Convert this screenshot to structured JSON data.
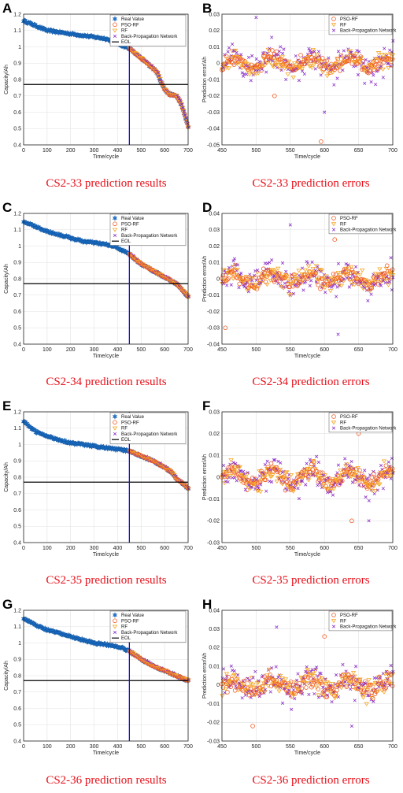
{
  "colors": {
    "real": "#1f77d0",
    "pso_rf": "#f05a22",
    "rf": "#f5a623",
    "bp": "#8b2fc9",
    "eol": "#000000",
    "start_line": "#1010cc",
    "caption": "#e8101a"
  },
  "legend_results": [
    "Real Value",
    "PSO-RF",
    "RF",
    "Back-Propagation  Network",
    "EOL"
  ],
  "legend_errors": [
    "PSO-RF",
    "RF",
    "Back-Propagation  Network"
  ],
  "chart_data": [
    {
      "panel": "A",
      "type": "scatter",
      "caption": "CS2-33 prediction results",
      "xlabel": "Time/cycle",
      "ylabel": "Capacity/Ah",
      "xlim": [
        0,
        700
      ],
      "ylim": [
        0.4,
        1.2
      ],
      "xticks": [
        0,
        100,
        200,
        300,
        400,
        500,
        600,
        700
      ],
      "yticks": [
        0.4,
        0.5,
        0.6,
        0.7,
        0.8,
        0.9,
        1,
        1.1,
        1.2
      ],
      "eol": 0.77,
      "prediction_start": 450,
      "real_curve": [
        [
          0,
          1.16
        ],
        [
          50,
          1.13
        ],
        [
          100,
          1.1
        ],
        [
          150,
          1.09
        ],
        [
          200,
          1.08
        ],
        [
          250,
          1.07
        ],
        [
          300,
          1.06
        ],
        [
          350,
          1.05
        ],
        [
          400,
          1.02
        ],
        [
          450,
          0.99
        ],
        [
          500,
          0.93
        ],
        [
          550,
          0.87
        ],
        [
          570,
          0.84
        ],
        [
          580,
          0.8
        ],
        [
          600,
          0.74
        ],
        [
          620,
          0.71
        ],
        [
          650,
          0.7
        ],
        [
          670,
          0.65
        ],
        [
          690,
          0.56
        ],
        [
          700,
          0.51
        ]
      ]
    },
    {
      "panel": "B",
      "type": "scatter",
      "caption": "CS2-33 prediction errors",
      "xlabel": "Time/cycle",
      "ylabel": "Prediction error/Ah",
      "xlim": [
        450,
        700
      ],
      "ylim": [
        -0.05,
        0.03
      ],
      "xticks": [
        450,
        500,
        550,
        600,
        650,
        700
      ],
      "yticks": [
        -0.05,
        -0.04,
        -0.03,
        -0.02,
        -0.01,
        0,
        0.01,
        0.02,
        0.03
      ],
      "spread": [
        0.006,
        0.008,
        0.014
      ],
      "outliers": [
        [
          500,
          0.028
        ],
        [
          595,
          -0.048
        ],
        [
          600,
          -0.03
        ],
        [
          527,
          -0.02
        ]
      ]
    },
    {
      "panel": "C",
      "type": "scatter",
      "caption": "CS2-34 prediction results",
      "xlabel": "Time/cycle",
      "ylabel": "Capacity/Ah",
      "xlim": [
        0,
        700
      ],
      "ylim": [
        0.4,
        1.2
      ],
      "xticks": [
        0,
        100,
        200,
        300,
        400,
        500,
        600,
        700
      ],
      "yticks": [
        0.4,
        0.5,
        0.6,
        0.7,
        0.8,
        0.9,
        1,
        1.1,
        1.2
      ],
      "eol": 0.77,
      "prediction_start": 450,
      "real_curve": [
        [
          0,
          1.15
        ],
        [
          50,
          1.12
        ],
        [
          100,
          1.09
        ],
        [
          150,
          1.07
        ],
        [
          200,
          1.05
        ],
        [
          250,
          1.03
        ],
        [
          300,
          1.02
        ],
        [
          350,
          1.01
        ],
        [
          400,
          0.99
        ],
        [
          450,
          0.95
        ],
        [
          500,
          0.89
        ],
        [
          550,
          0.85
        ],
        [
          600,
          0.81
        ],
        [
          650,
          0.77
        ],
        [
          700,
          0.69
        ]
      ]
    },
    {
      "panel": "D",
      "type": "scatter",
      "caption": "CS2-34 prediction errors",
      "xlabel": "Time/cycle",
      "ylabel": "Prediction error/Ah",
      "xlim": [
        450,
        700
      ],
      "ylim": [
        -0.04,
        0.04
      ],
      "xticks": [
        450,
        500,
        550,
        600,
        650,
        700
      ],
      "yticks": [
        -0.04,
        -0.03,
        -0.02,
        -0.01,
        0,
        0.01,
        0.02,
        0.03,
        0.04
      ],
      "spread": [
        0.007,
        0.009,
        0.013
      ],
      "outliers": [
        [
          550,
          0.033
        ],
        [
          455,
          -0.03
        ],
        [
          620,
          -0.034
        ],
        [
          615,
          0.024
        ]
      ]
    },
    {
      "panel": "E",
      "type": "scatter",
      "caption": "CS2-35 prediction results",
      "xlabel": "Time/cycle",
      "ylabel": "Capacity/Ah",
      "xlim": [
        0,
        700
      ],
      "ylim": [
        0.4,
        1.2
      ],
      "xticks": [
        0,
        100,
        200,
        300,
        400,
        500,
        600,
        700
      ],
      "yticks": [
        0.4,
        0.5,
        0.6,
        0.7,
        0.8,
        0.9,
        1,
        1.1,
        1.2
      ],
      "eol": 0.77,
      "prediction_start": 450,
      "real_curve": [
        [
          0,
          1.14
        ],
        [
          50,
          1.08
        ],
        [
          100,
          1.05
        ],
        [
          150,
          1.03
        ],
        [
          200,
          1.01
        ],
        [
          250,
          1.0
        ],
        [
          300,
          0.99
        ],
        [
          350,
          0.98
        ],
        [
          400,
          0.97
        ],
        [
          450,
          0.96
        ],
        [
          500,
          0.93
        ],
        [
          550,
          0.9
        ],
        [
          600,
          0.86
        ],
        [
          630,
          0.83
        ],
        [
          650,
          0.79
        ],
        [
          680,
          0.76
        ],
        [
          700,
          0.73
        ]
      ]
    },
    {
      "panel": "F",
      "type": "scatter",
      "caption": "CS2-35 prediction errors",
      "xlabel": "Time/cycle",
      "ylabel": "Prediction error/Ah",
      "xlim": [
        450,
        700
      ],
      "ylim": [
        -0.03,
        0.03
      ],
      "xticks": [
        450,
        500,
        550,
        600,
        650,
        700
      ],
      "yticks": [
        -0.03,
        -0.02,
        -0.01,
        0,
        0.01,
        0.02,
        0.03
      ],
      "spread": [
        0.005,
        0.006,
        0.01
      ],
      "outliers": [
        [
          680,
          0.029
        ],
        [
          640,
          -0.02
        ],
        [
          665,
          -0.02
        ],
        [
          650,
          0.02
        ]
      ]
    },
    {
      "panel": "G",
      "type": "scatter",
      "caption": "CS2-36 prediction results",
      "xlabel": "Time/cycle",
      "ylabel": "Capacity/Ah",
      "xlim": [
        0,
        700
      ],
      "ylim": [
        0.4,
        1.2
      ],
      "xticks": [
        0,
        100,
        200,
        300,
        400,
        500,
        600,
        700
      ],
      "yticks": [
        0.4,
        0.5,
        0.6,
        0.7,
        0.8,
        0.9,
        1,
        1.1,
        1.2
      ],
      "eol": 0.77,
      "prediction_start": 450,
      "real_curve": [
        [
          0,
          1.15
        ],
        [
          50,
          1.11
        ],
        [
          100,
          1.08
        ],
        [
          150,
          1.06
        ],
        [
          200,
          1.04
        ],
        [
          250,
          1.02
        ],
        [
          300,
          1.0
        ],
        [
          350,
          0.99
        ],
        [
          400,
          0.98
        ],
        [
          450,
          0.95
        ],
        [
          500,
          0.9
        ],
        [
          550,
          0.86
        ],
        [
          600,
          0.83
        ],
        [
          650,
          0.8
        ],
        [
          700,
          0.77
        ]
      ]
    },
    {
      "panel": "H",
      "type": "scatter",
      "caption": "CS2-36 prediction errors",
      "xlabel": "Time/cycle",
      "ylabel": "Prediction error/Ah",
      "xlim": [
        450,
        700
      ],
      "ylim": [
        -0.03,
        0.04
      ],
      "xticks": [
        450,
        500,
        550,
        600,
        650,
        700
      ],
      "yticks": [
        -0.03,
        -0.02,
        -0.01,
        0,
        0.01,
        0.02,
        0.03,
        0.04
      ],
      "spread": [
        0.007,
        0.008,
        0.012
      ],
      "outliers": [
        [
          530,
          0.031
        ],
        [
          495,
          -0.022
        ],
        [
          640,
          -0.022
        ],
        [
          600,
          0.026
        ]
      ]
    }
  ]
}
